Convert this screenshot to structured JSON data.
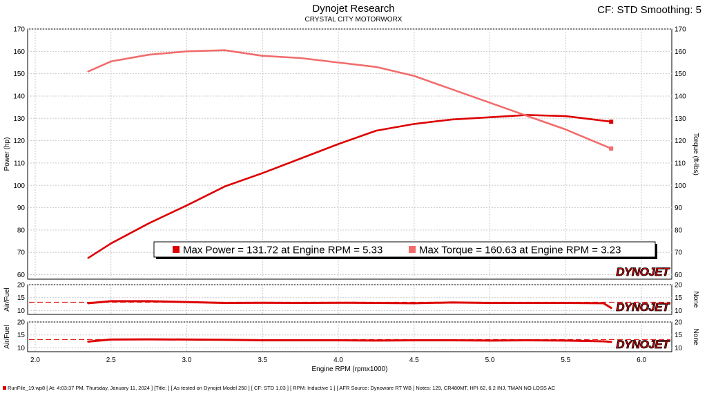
{
  "header": {
    "title": "Dynojet Research",
    "subtitle": "CRYSTAL CITY MOTORWORX",
    "settings": "CF: STD Smoothing: 5"
  },
  "colors": {
    "power": "#dd0000",
    "torque": "#f26c6c",
    "afr": "#dd0000",
    "grid": "#c8c8c8",
    "logo": "#cc0000"
  },
  "logo_text": "DYNOJET",
  "legend": {
    "power": "Max Power = 131.72 at Engine RPM = 5.33",
    "torque": "Max Torque = 160.63 at Engine RPM = 3.23"
  },
  "chart_data": [
    {
      "type": "line",
      "xlabel": "Engine RPM (rpmx1000)",
      "ylabel": "Power (hp)",
      "y2label": "Torque (ft-lbs)",
      "xlim": [
        1.95,
        6.2
      ],
      "ylim": [
        58,
        170
      ],
      "x_ticks": [
        "2.0",
        "2.5",
        "3.0",
        "3.5",
        "4.0",
        "4.5",
        "5.0",
        "5.5",
        "6.0"
      ],
      "y_ticks": [
        60,
        70,
        80,
        90,
        100,
        110,
        120,
        130,
        140,
        150,
        160,
        170
      ],
      "grid": true,
      "legend_position": "bottom-center",
      "series": [
        {
          "name": "Power",
          "axis": "left",
          "x": [
            2.35,
            2.5,
            2.75,
            3.0,
            3.25,
            3.5,
            3.75,
            4.0,
            4.25,
            4.5,
            4.75,
            5.0,
            5.25,
            5.5,
            5.8
          ],
          "y": [
            67.5,
            74,
            83,
            91,
            99.5,
            105.5,
            112,
            118.5,
            124.5,
            127.5,
            129.5,
            130.5,
            131.5,
            131,
            128.5
          ]
        },
        {
          "name": "Torque",
          "axis": "right",
          "x": [
            2.35,
            2.5,
            2.75,
            3.0,
            3.25,
            3.5,
            3.75,
            4.0,
            4.25,
            4.5,
            4.75,
            5.0,
            5.25,
            5.5,
            5.8
          ],
          "y": [
            151,
            155.5,
            158.5,
            160,
            160.5,
            158,
            157,
            155,
            153,
            149,
            143,
            137,
            131,
            125,
            116.5
          ]
        }
      ]
    },
    {
      "type": "line",
      "ylabel": "Air/Fuel",
      "y2label": "None",
      "xlim": [
        1.95,
        6.2
      ],
      "ylim": [
        8.5,
        20
      ],
      "y_ticks": [
        10,
        15,
        20
      ],
      "reference_line": 13.2,
      "series": [
        {
          "name": "Air/Fuel",
          "x": [
            2.35,
            2.5,
            2.75,
            3.0,
            3.25,
            3.5,
            3.75,
            4.0,
            4.25,
            4.5,
            4.75,
            5.0,
            5.25,
            5.5,
            5.75,
            5.8
          ],
          "y": [
            12.8,
            13.6,
            13.6,
            13.3,
            12.9,
            13.0,
            12.9,
            13.0,
            12.9,
            12.8,
            13.1,
            12.9,
            12.9,
            12.9,
            12.8,
            11.0
          ]
        }
      ]
    },
    {
      "type": "line",
      "ylabel": "Air/Fuel",
      "y2label": "None",
      "xlim": [
        1.95,
        6.2
      ],
      "ylim": [
        8.5,
        20
      ],
      "y_ticks": [
        10,
        15,
        20
      ],
      "reference_line": 13.2,
      "series": [
        {
          "name": "Air/Fuel",
          "x": [
            2.35,
            2.5,
            2.75,
            3.0,
            3.25,
            3.5,
            3.75,
            4.0,
            4.25,
            4.5,
            4.75,
            5.0,
            5.25,
            5.5,
            5.75,
            5.8
          ],
          "y": [
            12.4,
            13.2,
            13.3,
            13.2,
            13.1,
            12.9,
            12.9,
            12.9,
            12.8,
            12.9,
            12.9,
            12.8,
            12.9,
            12.8,
            12.5,
            12.3
          ]
        }
      ]
    }
  ],
  "footer": "RunFile_19.wp8 [ At: 4:03:37 PM, Thursday, January 11, 2024 ] [Title: ]  [ As tested on Dynojet Model 250 ] [ CF: STD 1.03 ] [ RPM: Inductive 1 ] [ AFR Source: Dynoware RT WB ] Notes: 129, CR480MT, HPI 62, 6.2 INJ, TMAN NO LOSS AC"
}
